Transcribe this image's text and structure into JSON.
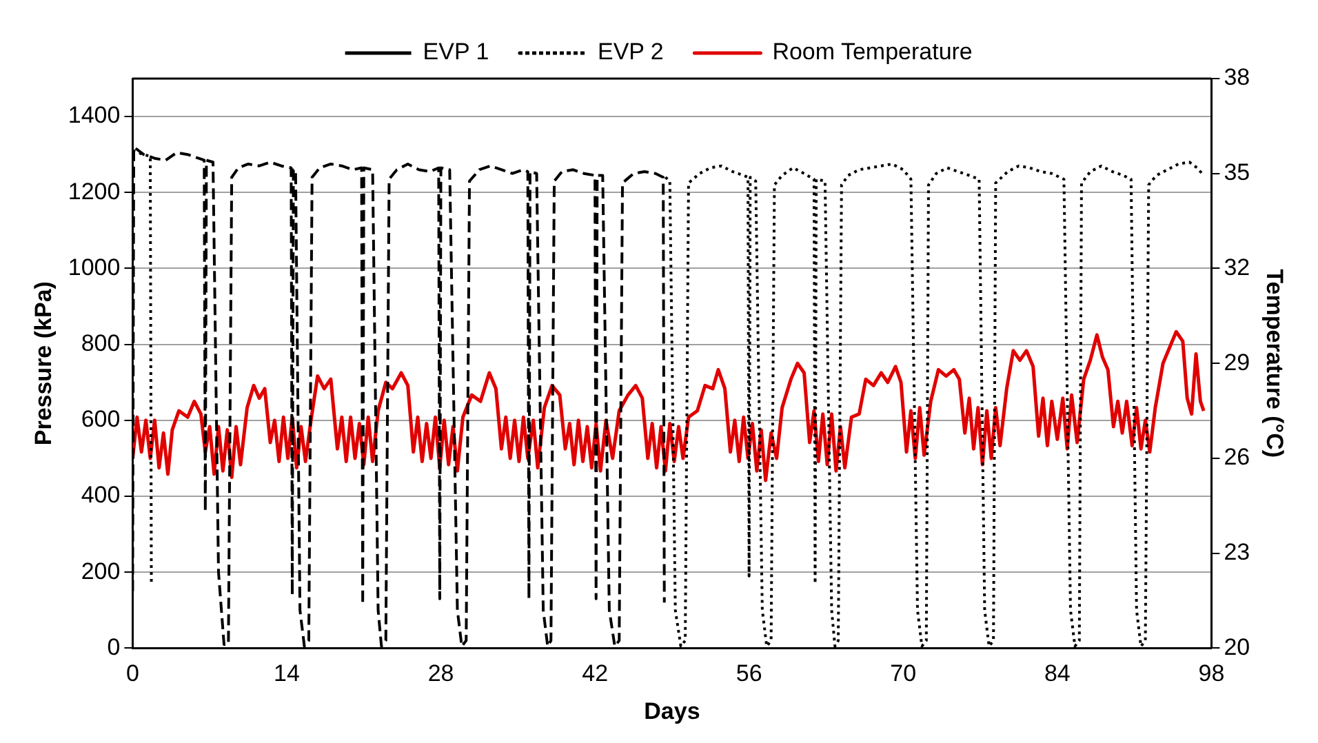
{
  "chart_data": {
    "type": "line",
    "xlabel": "Days",
    "ylabel": "Pressure (kPa)",
    "y2label": "Temperature (°C)",
    "xlim": [
      0,
      98
    ],
    "xticks": [
      0,
      14,
      28,
      42,
      56,
      70,
      84,
      98
    ],
    "ylim": [
      0,
      1500
    ],
    "yticks": [
      0,
      200,
      400,
      600,
      800,
      1000,
      1200,
      1400
    ],
    "y2lim": [
      20,
      38
    ],
    "y2ticks": [
      20,
      23,
      26,
      29,
      32,
      35,
      38
    ],
    "grid": "y",
    "legend": "top",
    "marker": "none",
    "series": [
      {
        "name": "EVP 1",
        "color": "#000000",
        "line_style": "dashed",
        "x": [
          0,
          0.1,
          1,
          2,
          3,
          4,
          5,
          6,
          6.5,
          6.6,
          6.7,
          7.3,
          7.8,
          8.3,
          8.7,
          9.0,
          9.6,
          10.5,
          11.5,
          12.5,
          13.5,
          14.4,
          14.5,
          14.6,
          14.8,
          15.2,
          15.6,
          16.0,
          16.3,
          17,
          18,
          19,
          20,
          20.8,
          20.9,
          21.0,
          21.8,
          22.3,
          22.6,
          23.0,
          23.3,
          24,
          25,
          26,
          27,
          27.8,
          27.9,
          28.0,
          28.8,
          29.5,
          29.9,
          30.3,
          30.6,
          31.5,
          32.5,
          33.5,
          34.5,
          35.5,
          35.9,
          36.0,
          36.1,
          36.7,
          37.3,
          37.7,
          38.0,
          38.3,
          39,
          40,
          41,
          42.0,
          42.1,
          42.2,
          42.7,
          43.3,
          43.8,
          44.2,
          44.5,
          45.5,
          46.5,
          47.5,
          48.2,
          48.3
        ],
        "values": [
          150,
          1320,
          1300,
          1290,
          1285,
          1305,
          1300,
          1290,
          1285,
          360,
          1285,
          1280,
          200,
          10,
          10,
          1240,
          1265,
          1275,
          1270,
          1280,
          1270,
          1265,
          140,
          1260,
          1260,
          100,
          5,
          20,
          1240,
          1265,
          1275,
          1270,
          1260,
          1265,
          115,
          1265,
          1260,
          100,
          5,
          20,
          1235,
          1260,
          1275,
          1260,
          1255,
          1265,
          130,
          1265,
          1260,
          100,
          5,
          20,
          1230,
          1260,
          1270,
          1260,
          1250,
          1260,
          1255,
          130,
          1255,
          1250,
          100,
          5,
          20,
          1230,
          1255,
          1260,
          1250,
          1245,
          130,
          1245,
          1245,
          100,
          5,
          20,
          1225,
          1250,
          1255,
          1250,
          1240,
          120
        ]
      },
      {
        "name": "EVP 2",
        "color": "#000000",
        "line_style": "dotted",
        "x": [
          0,
          1.0,
          1.6,
          1.7,
          2.0,
          48.4,
          48.8,
          49.3,
          49.8,
          50.2,
          50.5,
          51.5,
          52.5,
          53.5,
          54.5,
          55.5,
          55.9,
          56.0,
          56.1,
          56.6,
          57.2,
          57.6,
          58.0,
          58.3,
          59,
          60,
          61,
          61.9,
          62.0,
          62.1,
          62.9,
          63.5,
          63.8,
          64.1,
          64.4,
          65,
          66,
          67,
          68,
          69,
          70,
          70.7,
          71.3,
          71.7,
          72.1,
          72.3,
          73,
          74,
          75,
          76,
          76.9,
          77.4,
          77.8,
          78.2,
          78.4,
          79.5,
          80.5,
          81.5,
          82.5,
          83.5,
          84.6,
          85.2,
          85.6,
          86.0,
          86.2,
          87,
          88,
          89,
          90,
          90.7,
          91.2,
          91.6,
          92.0,
          92.3,
          93,
          94,
          95,
          96,
          96.7,
          97.3
        ],
        "values": [
          1310,
          1300,
          1295,
          165,
          null,
          1240,
          1230,
          100,
          5,
          20,
          1225,
          1250,
          1265,
          1270,
          1255,
          1245,
          1240,
          190,
          1240,
          1230,
          100,
          5,
          20,
          1220,
          1245,
          1265,
          1250,
          1235,
          170,
          1235,
          1230,
          100,
          5,
          20,
          1220,
          1245,
          1260,
          1265,
          1270,
          1275,
          1260,
          1235,
          100,
          5,
          20,
          1220,
          1250,
          1265,
          1255,
          1245,
          1235,
          100,
          5,
          20,
          1225,
          1255,
          1270,
          1265,
          1255,
          1250,
          1235,
          100,
          5,
          20,
          1225,
          1255,
          1270,
          1255,
          1245,
          1235,
          100,
          5,
          20,
          1220,
          1245,
          1260,
          1275,
          1280,
          1265,
          1245
        ]
      },
      {
        "name": "Room Temperature",
        "color": "#e00000",
        "line_style": "solid",
        "axis": "y2",
        "x": [
          0,
          0.4,
          0.8,
          1.2,
          1.6,
          2.0,
          2.4,
          2.8,
          3.2,
          3.6,
          4.2,
          5.0,
          5.6,
          6.2,
          6.6,
          7.0,
          7.4,
          7.8,
          8.2,
          8.6,
          9.0,
          9.4,
          9.8,
          10.4,
          11.0,
          11.5,
          12.0,
          12.5,
          12.9,
          13.3,
          13.7,
          14.1,
          14.5,
          14.9,
          15.3,
          15.7,
          16.2,
          16.8,
          17.4,
          18.0,
          18.6,
          19.0,
          19.4,
          19.8,
          20.2,
          20.6,
          21.0,
          21.4,
          21.8,
          22.3,
          23.0,
          23.6,
          24.4,
          25.0,
          25.5,
          25.9,
          26.3,
          26.7,
          27.1,
          27.5,
          27.9,
          28.3,
          28.7,
          29.1,
          29.5,
          30.0,
          30.8,
          31.6,
          32.4,
          33.0,
          33.5,
          33.9,
          34.3,
          34.7,
          35.1,
          35.5,
          35.9,
          36.4,
          36.8,
          37.4,
          38.1,
          38.8,
          39.3,
          39.7,
          40.1,
          40.5,
          40.9,
          41.3,
          41.7,
          42.1,
          42.5,
          43.0,
          43.6,
          44.2,
          45.0,
          45.7,
          46.3,
          46.8,
          47.2,
          47.6,
          48.0,
          48.4,
          48.8,
          49.2,
          49.6,
          50.0,
          50.5,
          51.3,
          52.0,
          52.7,
          53.2,
          53.8,
          54.3,
          54.7,
          55.1,
          55.5,
          55.9,
          56.3,
          56.7,
          57.1,
          57.5,
          58.0,
          58.5,
          59.0,
          59.8,
          60.4,
          61.0,
          61.5,
          61.9,
          62.3,
          62.7,
          63.1,
          63.5,
          63.9,
          64.3,
          64.7,
          65.3,
          66.0,
          66.6,
          67.3,
          68.0,
          68.6,
          69.3,
          69.8,
          70.3,
          70.7,
          71.1,
          71.5,
          71.9,
          72.5,
          73.2,
          73.9,
          74.6,
          75.1,
          75.6,
          76.0,
          76.4,
          76.8,
          77.2,
          77.6,
          78.0,
          78.4,
          78.8,
          79.4,
          80.0,
          80.6,
          81.2,
          81.8,
          82.3,
          82.7,
          83.1,
          83.5,
          84.0,
          84.5,
          84.9,
          85.3,
          85.8,
          86.4,
          87.0,
          87.6,
          88.1,
          88.6,
          89.1,
          89.5,
          89.9,
          90.3,
          90.8,
          91.2,
          91.6,
          92.0,
          92.4,
          92.9,
          93.6,
          94.2,
          94.8,
          95.4,
          95.8,
          96.2,
          96.6,
          97.0,
          97.3
        ],
        "values": [
          26.0,
          27.3,
          26.2,
          27.2,
          26.0,
          27.2,
          25.7,
          26.8,
          25.5,
          26.9,
          27.5,
          27.3,
          27.8,
          27.4,
          26.2,
          27.0,
          25.5,
          27.0,
          25.6,
          26.9,
          25.4,
          27.0,
          25.8,
          27.6,
          28.3,
          27.9,
          28.2,
          26.5,
          27.2,
          25.9,
          27.3,
          26.0,
          27.3,
          25.7,
          27.0,
          25.9,
          27.2,
          28.6,
          28.2,
          28.5,
          26.3,
          27.3,
          25.9,
          27.3,
          26.0,
          27.1,
          25.8,
          27.3,
          25.9,
          27.5,
          28.4,
          28.2,
          28.7,
          28.3,
          26.2,
          27.3,
          25.9,
          27.1,
          26.0,
          27.3,
          25.7,
          27.2,
          25.8,
          27.0,
          25.6,
          27.3,
          28.0,
          27.8,
          28.7,
          28.2,
          26.3,
          27.3,
          26.0,
          27.2,
          25.9,
          27.3,
          26.0,
          27.2,
          25.7,
          27.6,
          28.3,
          28.0,
          26.3,
          27.1,
          25.8,
          27.2,
          25.9,
          27.0,
          25.7,
          27.1,
          25.6,
          27.2,
          26.0,
          27.5,
          28.0,
          28.3,
          27.9,
          26.0,
          27.1,
          25.7,
          27.0,
          25.6,
          27.1,
          25.9,
          27.0,
          26.0,
          27.3,
          27.5,
          28.3,
          28.2,
          28.8,
          28.2,
          26.2,
          27.2,
          25.9,
          27.3,
          26.0,
          27.1,
          25.6,
          26.9,
          25.3,
          26.8,
          26.0,
          27.6,
          28.5,
          29.0,
          28.7,
          26.5,
          27.5,
          25.9,
          27.4,
          25.8,
          27.4,
          25.6,
          27.0,
          25.7,
          27.3,
          27.4,
          28.5,
          28.3,
          28.7,
          28.4,
          28.9,
          28.4,
          26.2,
          27.5,
          26.0,
          27.6,
          26.1,
          27.8,
          28.8,
          28.6,
          28.8,
          28.5,
          26.8,
          27.9,
          26.3,
          27.6,
          25.8,
          27.5,
          26.0,
          27.6,
          26.4,
          28.2,
          29.4,
          29.1,
          29.4,
          28.9,
          26.7,
          27.9,
          26.4,
          27.8,
          26.6,
          27.9,
          26.3,
          28.0,
          26.5,
          28.5,
          29.1,
          29.9,
          29.2,
          28.8,
          27.0,
          27.8,
          26.8,
          27.8,
          26.4,
          27.6,
          26.3,
          27.2,
          26.2,
          27.6,
          29.0,
          29.5,
          30.0,
          29.7,
          27.9,
          27.4,
          29.3,
          27.8,
          27.5
        ]
      }
    ]
  }
}
